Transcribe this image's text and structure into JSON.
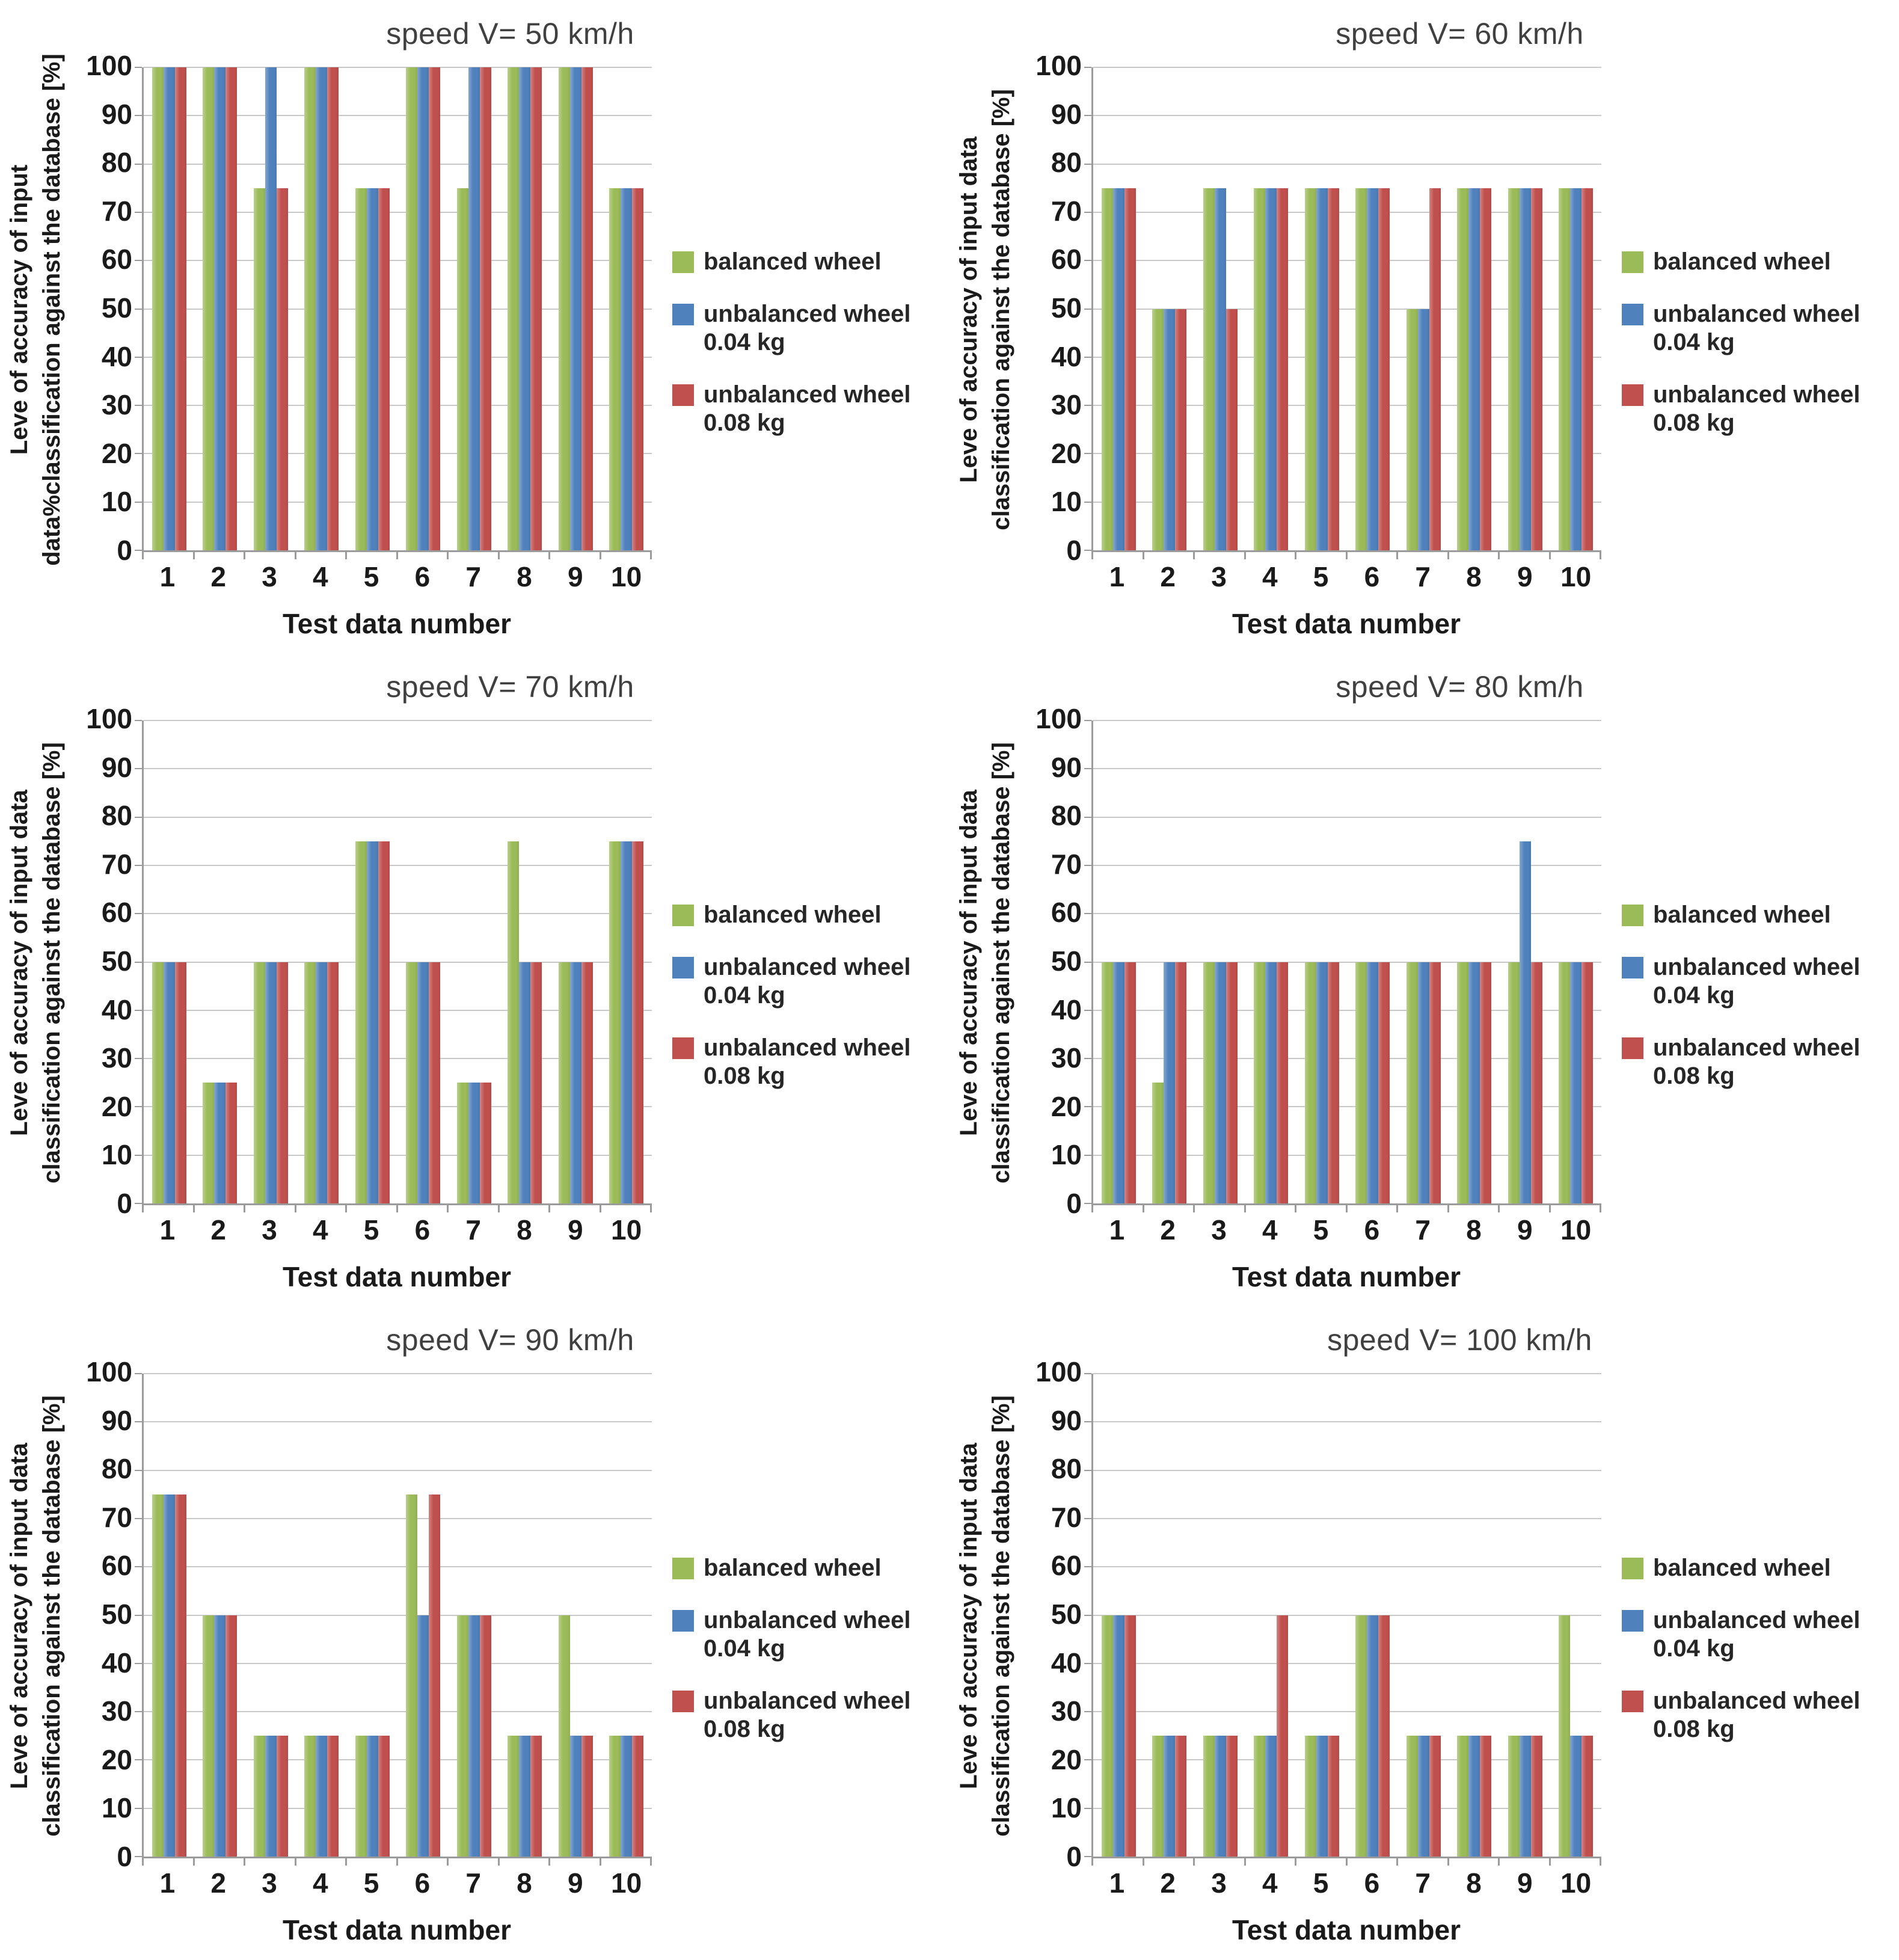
{
  "figure": {
    "background": "#ffffff",
    "xlabel": "Test data number"
  },
  "styles": {
    "balanced_color": "#9BBB59",
    "unbalanced_004_color": "#4F81BD",
    "unbalanced_008_color": "#C0504D",
    "gridline_color": "#C9C9C9",
    "axis_color": "#9B9B9B",
    "title_color": "#404040",
    "tick_text_color": "#1A1A1A"
  },
  "legend": {
    "items": [
      {
        "key": "balanced",
        "color": "#9BBB59",
        "lines": [
          "balanced wheel"
        ]
      },
      {
        "key": "unbalanced_004",
        "color": "#4F81BD",
        "lines": [
          "unbalanced wheel",
          "0.04 kg"
        ]
      },
      {
        "key": "unbalanced_008",
        "color": "#C0504D",
        "lines": [
          "unbalanced wheel",
          "0.08 kg"
        ]
      }
    ]
  },
  "chart_data": [
    {
      "type": "bar",
      "title": "speed V= 50 km/h",
      "xlabel": "Test data number",
      "ylabel_lines": [
        "Leve of accuracy of input",
        "data%classification against the database [%]"
      ],
      "categories": [
        "1",
        "2",
        "3",
        "4",
        "5",
        "6",
        "7",
        "8",
        "9",
        "10"
      ],
      "ylim": [
        0,
        100
      ],
      "yticks": [
        0,
        10,
        20,
        30,
        40,
        50,
        60,
        70,
        80,
        90,
        100
      ],
      "grid": true,
      "legend_position": "right",
      "series": [
        {
          "name": "balanced wheel",
          "color": "#9BBB59",
          "values": [
            100,
            100,
            75,
            100,
            75,
            100,
            75,
            100,
            100,
            75
          ]
        },
        {
          "name": "unbalanced wheel 0.04 kg",
          "color": "#4F81BD",
          "values": [
            100,
            100,
            100,
            100,
            75,
            100,
            100,
            100,
            100,
            75
          ]
        },
        {
          "name": "unbalanced wheel 0.08 kg",
          "color": "#C0504D",
          "values": [
            100,
            100,
            75,
            100,
            75,
            100,
            100,
            100,
            100,
            75
          ]
        }
      ]
    },
    {
      "type": "bar",
      "title": "speed V= 60 km/h",
      "xlabel": "Test data number",
      "ylabel_lines": [
        "Leve of accuracy of input data",
        "classification against the database [%]"
      ],
      "categories": [
        "1",
        "2",
        "3",
        "4",
        "5",
        "6",
        "7",
        "8",
        "9",
        "10"
      ],
      "ylim": [
        0,
        100
      ],
      "yticks": [
        0,
        10,
        20,
        30,
        40,
        50,
        60,
        70,
        80,
        90,
        100
      ],
      "grid": true,
      "legend_position": "right",
      "series": [
        {
          "name": "balanced wheel",
          "color": "#9BBB59",
          "values": [
            75,
            50,
            75,
            75,
            75,
            75,
            50,
            75,
            75,
            75
          ]
        },
        {
          "name": "unbalanced wheel 0.04 kg",
          "color": "#4F81BD",
          "values": [
            75,
            50,
            75,
            75,
            75,
            75,
            50,
            75,
            75,
            75
          ]
        },
        {
          "name": "unbalanced wheel 0.08 kg",
          "color": "#C0504D",
          "values": [
            75,
            50,
            50,
            75,
            75,
            75,
            75,
            75,
            75,
            75
          ]
        }
      ]
    },
    {
      "type": "bar",
      "title": "speed V= 70 km/h",
      "xlabel": "Test data number",
      "ylabel_lines": [
        "Leve of accuracy of input data",
        "classification against the database [%]"
      ],
      "categories": [
        "1",
        "2",
        "3",
        "4",
        "5",
        "6",
        "7",
        "8",
        "9",
        "10"
      ],
      "ylim": [
        0,
        100
      ],
      "yticks": [
        0,
        10,
        20,
        30,
        40,
        50,
        60,
        70,
        80,
        90,
        100
      ],
      "grid": true,
      "legend_position": "right",
      "series": [
        {
          "name": "balanced wheel",
          "color": "#9BBB59",
          "values": [
            50,
            25,
            50,
            50,
            75,
            50,
            25,
            75,
            50,
            75
          ]
        },
        {
          "name": "unbalanced wheel 0.04 kg",
          "color": "#4F81BD",
          "values": [
            50,
            25,
            50,
            50,
            75,
            50,
            25,
            50,
            50,
            75
          ]
        },
        {
          "name": "unbalanced wheel 0.08 kg",
          "color": "#C0504D",
          "values": [
            50,
            25,
            50,
            50,
            75,
            50,
            25,
            50,
            50,
            75
          ]
        }
      ]
    },
    {
      "type": "bar",
      "title": "speed V= 80 km/h",
      "xlabel": "Test data number",
      "ylabel_lines": [
        "Leve of accuracy of input data",
        "classification against the database [%]"
      ],
      "categories": [
        "1",
        "2",
        "3",
        "4",
        "5",
        "6",
        "7",
        "8",
        "9",
        "10"
      ],
      "ylim": [
        0,
        100
      ],
      "yticks": [
        0,
        10,
        20,
        30,
        40,
        50,
        60,
        70,
        80,
        90,
        100
      ],
      "grid": true,
      "legend_position": "right",
      "series": [
        {
          "name": "balanced wheel",
          "color": "#9BBB59",
          "values": [
            50,
            25,
            50,
            50,
            50,
            50,
            50,
            50,
            50,
            50
          ]
        },
        {
          "name": "unbalanced wheel 0.04 kg",
          "color": "#4F81BD",
          "values": [
            50,
            50,
            50,
            50,
            50,
            50,
            50,
            50,
            75,
            50
          ]
        },
        {
          "name": "unbalanced wheel 0.08 kg",
          "color": "#C0504D",
          "values": [
            50,
            50,
            50,
            50,
            50,
            50,
            50,
            50,
            50,
            50
          ]
        }
      ]
    },
    {
      "type": "bar",
      "title": "speed V= 90 km/h",
      "xlabel": "Test data number",
      "ylabel_lines": [
        "Leve of accuracy of input data",
        "classification against the database [%]"
      ],
      "categories": [
        "1",
        "2",
        "3",
        "4",
        "5",
        "6",
        "7",
        "8",
        "9",
        "10"
      ],
      "ylim": [
        0,
        100
      ],
      "yticks": [
        0,
        10,
        20,
        30,
        40,
        50,
        60,
        70,
        80,
        90,
        100
      ],
      "grid": true,
      "legend_position": "right",
      "series": [
        {
          "name": "balanced wheel",
          "color": "#9BBB59",
          "values": [
            75,
            50,
            25,
            25,
            25,
            75,
            50,
            25,
            50,
            25
          ]
        },
        {
          "name": "unbalanced wheel 0.04 kg",
          "color": "#4F81BD",
          "values": [
            75,
            50,
            25,
            25,
            25,
            50,
            50,
            25,
            25,
            25
          ]
        },
        {
          "name": "unbalanced wheel 0.08 kg",
          "color": "#C0504D",
          "values": [
            75,
            50,
            25,
            25,
            25,
            75,
            50,
            25,
            25,
            25
          ]
        }
      ]
    },
    {
      "type": "bar",
      "title": "speed V= 100 km/h",
      "xlabel": "Test data number",
      "ylabel_lines": [
        "Leve of accuracy of input data",
        "classification against the database [%]"
      ],
      "categories": [
        "1",
        "2",
        "3",
        "4",
        "5",
        "6",
        "7",
        "8",
        "9",
        "10"
      ],
      "ylim": [
        0,
        100
      ],
      "yticks": [
        0,
        10,
        20,
        30,
        40,
        50,
        60,
        70,
        80,
        90,
        100
      ],
      "grid": true,
      "legend_position": "right",
      "series": [
        {
          "name": "balanced wheel",
          "color": "#9BBB59",
          "values": [
            50,
            25,
            25,
            25,
            25,
            50,
            25,
            25,
            25,
            50
          ]
        },
        {
          "name": "unbalanced wheel 0.04 kg",
          "color": "#4F81BD",
          "values": [
            50,
            25,
            25,
            25,
            25,
            50,
            25,
            25,
            25,
            25
          ]
        },
        {
          "name": "unbalanced wheel 0.08 kg",
          "color": "#C0504D",
          "values": [
            50,
            25,
            25,
            50,
            25,
            50,
            25,
            25,
            25,
            25
          ]
        }
      ]
    }
  ]
}
